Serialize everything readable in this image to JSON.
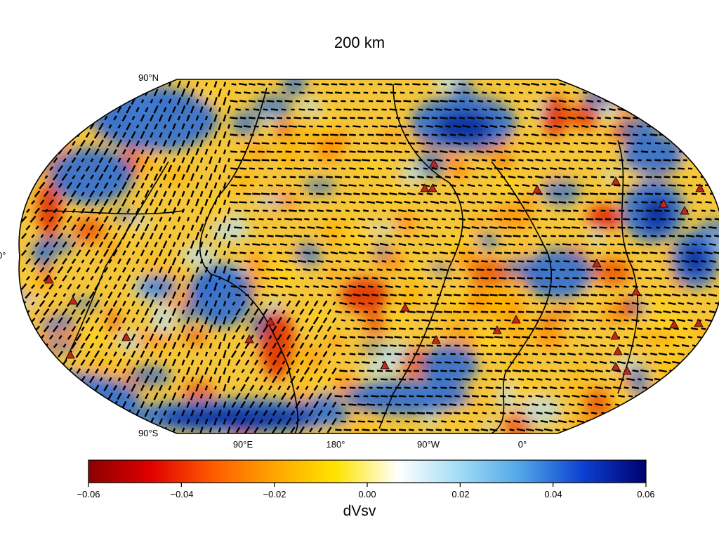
{
  "title": "200 km",
  "latitude_labels": [
    "90°N",
    "0°",
    "90°S"
  ],
  "longitude_labels": [
    "90°E",
    "180°",
    "90°W",
    "0°"
  ],
  "colorbar": {
    "label": "dVsv",
    "ticks": [
      "−0.06",
      "−0.04",
      "−0.02",
      "0.00",
      "0.02",
      "0.04",
      "0.06"
    ],
    "range": [
      -0.06,
      0.06
    ],
    "colors": [
      "#8b0000",
      "#e00000",
      "#ff5a00",
      "#ffa500",
      "#ffe400",
      "#ffffff",
      "#9fdcf5",
      "#4ea3e8",
      "#0b3fd0",
      "#00006e"
    ]
  },
  "map": {
    "projection": "Robinson",
    "center_longitude": "150°W",
    "background_colors": {
      "slow": "#ffb000",
      "warm": "#f5c63a",
      "fast": "#2f6fd6",
      "very_fast": "#0a2f9e",
      "neutral": "#b9e0f4"
    },
    "overlays": [
      "azimuthal anisotropy bars",
      "plate boundaries",
      "coastlines",
      "hotspot triangles"
    ]
  }
}
